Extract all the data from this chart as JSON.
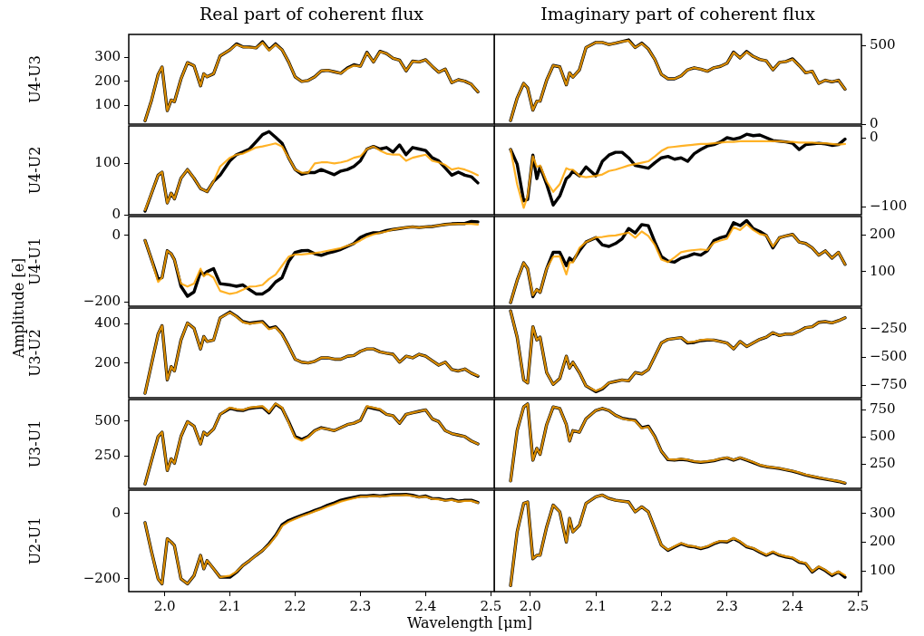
{
  "chart_data": [
    {
      "type": "line",
      "title": "Real part of coherent flux",
      "ylabel": "U4-U3",
      "annotations": [
        "Amplitude [e]"
      ],
      "x": [
        1.97,
        1.98,
        1.99,
        1.996,
        2.004,
        2.01,
        2.015,
        2.025,
        2.035,
        2.045,
        2.055,
        2.06,
        2.065,
        2.075,
        2.085,
        2.1,
        2.11,
        2.12,
        2.13,
        2.14,
        2.15,
        2.16,
        2.17,
        2.18,
        2.19,
        2.2,
        2.21,
        2.22,
        2.23,
        2.24,
        2.25,
        2.26,
        2.27,
        2.28,
        2.29,
        2.3,
        2.31,
        2.32,
        2.33,
        2.34,
        2.35,
        2.36,
        2.37,
        2.38,
        2.39,
        2.4,
        2.41,
        2.42,
        2.43,
        2.44,
        2.45,
        2.46,
        2.47,
        2.48
      ],
      "xlim": [
        1.945,
        2.505
      ],
      "ylim": [
        22,
        394
      ],
      "yticks": [
        100,
        200,
        300
      ],
      "tick_labels": "y",
      "series": [
        {
          "color": "#000000",
          "values": [
            36,
            122,
            228,
            259,
            78,
            122,
            115,
            209,
            277,
            264,
            181,
            231,
            218,
            231,
            305,
            330,
            355,
            342,
            342,
            338,
            364,
            330,
            355,
            330,
            280,
            218,
            199,
            203,
            218,
            243,
            245,
            239,
            233,
            255,
            268,
            262,
            320,
            280,
            324,
            315,
            295,
            287,
            243,
            283,
            280,
            289,
            262,
            237,
            250,
            194,
            206,
            200,
            187,
            156
          ]
        },
        {
          "color": "#ffa500",
          "values": [
            36,
            122,
            228,
            259,
            78,
            122,
            115,
            209,
            277,
            264,
            181,
            231,
            218,
            231,
            305,
            330,
            352,
            342,
            340,
            338,
            360,
            328,
            352,
            330,
            280,
            218,
            199,
            203,
            218,
            243,
            245,
            239,
            233,
            252,
            265,
            262,
            318,
            280,
            322,
            315,
            295,
            287,
            243,
            283,
            280,
            289,
            262,
            237,
            250,
            194,
            206,
            200,
            187,
            156
          ]
        }
      ]
    },
    {
      "type": "line",
      "title": "Imaginary part of coherent flux",
      "x": [
        1.97,
        1.98,
        1.99,
        1.996,
        2.004,
        2.01,
        2.015,
        2.025,
        2.035,
        2.045,
        2.055,
        2.06,
        2.065,
        2.075,
        2.085,
        2.1,
        2.11,
        2.12,
        2.13,
        2.14,
        2.15,
        2.16,
        2.17,
        2.18,
        2.19,
        2.2,
        2.21,
        2.22,
        2.23,
        2.24,
        2.25,
        2.26,
        2.27,
        2.28,
        2.29,
        2.3,
        2.31,
        2.32,
        2.33,
        2.34,
        2.35,
        2.36,
        2.37,
        2.38,
        2.39,
        2.4,
        2.41,
        2.42,
        2.43,
        2.44,
        2.45,
        2.46,
        2.47,
        2.48
      ],
      "xlim": [
        1.945,
        2.505
      ],
      "y2lim": [
        0,
        570
      ],
      "y2ticks": [
        0,
        500
      ],
      "tick_labels": "y",
      "series": [
        {
          "color": "#000000",
          "axis": "y2",
          "values": [
            23,
            165,
            259,
            231,
            89,
            146,
            146,
            279,
            373,
            364,
            250,
            326,
            298,
            345,
            487,
            519,
            519,
            506,
            515,
            525,
            535,
            487,
            515,
            478,
            411,
            316,
            288,
            288,
            307,
            345,
            358,
            349,
            336,
            358,
            367,
            387,
            458,
            421,
            462,
            430,
            411,
            402,
            345,
            392,
            398,
            415,
            373,
            326,
            336,
            259,
            279,
            269,
            279,
            222
          ]
        },
        {
          "color": "#ffa500",
          "axis": "y2",
          "values": [
            23,
            165,
            259,
            231,
            89,
            146,
            146,
            279,
            373,
            364,
            250,
            326,
            298,
            345,
            487,
            519,
            519,
            506,
            515,
            525,
            530,
            487,
            512,
            478,
            411,
            316,
            288,
            288,
            307,
            345,
            358,
            349,
            336,
            358,
            367,
            387,
            455,
            421,
            458,
            430,
            411,
            402,
            345,
            392,
            398,
            412,
            373,
            326,
            336,
            259,
            279,
            269,
            279,
            222
          ]
        }
      ]
    },
    {
      "type": "line",
      "ylabel": "U4-U2",
      "x": [
        1.97,
        1.98,
        1.99,
        1.996,
        2.004,
        2.01,
        2.015,
        2.025,
        2.035,
        2.045,
        2.055,
        2.06,
        2.065,
        2.075,
        2.085,
        2.1,
        2.11,
        2.12,
        2.13,
        2.14,
        2.15,
        2.16,
        2.17,
        2.18,
        2.19,
        2.2,
        2.21,
        2.22,
        2.23,
        2.24,
        2.25,
        2.26,
        2.27,
        2.28,
        2.29,
        2.3,
        2.31,
        2.32,
        2.33,
        2.34,
        2.35,
        2.36,
        2.37,
        2.38,
        2.39,
        2.4,
        2.41,
        2.42,
        2.43,
        2.44,
        2.45,
        2.46,
        2.47,
        2.48
      ],
      "xlim": [
        1.945,
        2.505
      ],
      "ylim": [
        0,
        173
      ],
      "yticks": [
        0,
        100
      ],
      "tick_labels": "y",
      "series": [
        {
          "color": "#000000",
          "values": [
            7,
            42,
            77,
            83,
            23,
            42,
            31,
            71,
            88,
            71,
            51,
            48,
            45,
            65,
            77,
            105,
            117,
            122,
            128,
            142,
            156,
            162,
            151,
            139,
            111,
            88,
            79,
            82,
            82,
            88,
            83,
            78,
            85,
            88,
            94,
            105,
            128,
            133,
            128,
            131,
            122,
            136,
            117,
            131,
            128,
            125,
            111,
            105,
            91,
            77,
            83,
            77,
            74,
            62
          ]
        },
        {
          "color": "#ffa500",
          "values": [
            9,
            42,
            77,
            83,
            23,
            42,
            31,
            71,
            88,
            71,
            51,
            48,
            45,
            65,
            94,
            111,
            117,
            119,
            125,
            131,
            133,
            136,
            139,
            133,
            111,
            88,
            82,
            82,
            100,
            102,
            102,
            100,
            102,
            105,
            111,
            114,
            128,
            133,
            125,
            119,
            117,
            117,
            105,
            111,
            114,
            117,
            105,
            102,
            97,
            88,
            91,
            88,
            83,
            77
          ]
        }
      ]
    },
    {
      "type": "line",
      "x": [
        1.97,
        1.98,
        1.99,
        1.996,
        2.004,
        2.01,
        2.015,
        2.025,
        2.035,
        2.045,
        2.055,
        2.06,
        2.065,
        2.075,
        2.085,
        2.1,
        2.11,
        2.12,
        2.13,
        2.14,
        2.15,
        2.16,
        2.17,
        2.18,
        2.19,
        2.2,
        2.21,
        2.22,
        2.23,
        2.24,
        2.25,
        2.26,
        2.27,
        2.28,
        2.29,
        2.3,
        2.31,
        2.32,
        2.33,
        2.34,
        2.35,
        2.36,
        2.37,
        2.38,
        2.39,
        2.4,
        2.41,
        2.42,
        2.43,
        2.44,
        2.45,
        2.46,
        2.47,
        2.48
      ],
      "xlim": [
        1.945,
        2.505
      ],
      "y2lim": [
        -111,
        17
      ],
      "y2ticks": [
        {
          "value": -100,
          "label": "−100"
        },
        0
      ],
      "tick_labels": "y",
      "series": [
        {
          "color": "#000000",
          "axis": "y2",
          "values": [
            -17,
            -38,
            -91,
            -89,
            -25,
            -59,
            -42,
            -67,
            -97,
            -84,
            -59,
            -55,
            -48,
            -55,
            -42,
            -55,
            -34,
            -25,
            -21,
            -21,
            -29,
            -40,
            -42,
            -44,
            -36,
            -29,
            -27,
            -31,
            -29,
            -34,
            -23,
            -17,
            -12,
            -10,
            -6,
            0,
            -2,
            0,
            5,
            3,
            4,
            0,
            -4,
            -5,
            -6,
            -8,
            -17,
            -10,
            -9,
            -8,
            -9,
            -11,
            -10,
            -2
          ]
        },
        {
          "color": "#ffa500",
          "axis": "y2",
          "values": [
            -17,
            -67,
            -101,
            -84,
            -27,
            -42,
            -40,
            -63,
            -78,
            -67,
            -44,
            -46,
            -46,
            -55,
            -57,
            -55,
            -53,
            -48,
            -46,
            -43,
            -40,
            -38,
            -36,
            -34,
            -27,
            -19,
            -14,
            -13,
            -12,
            -11,
            -10,
            -9,
            -9,
            -8,
            -7,
            -6,
            -6,
            -5,
            -5,
            -5,
            -5,
            -5,
            -5,
            -5,
            -6,
            -6,
            -7,
            -7,
            -7,
            -8,
            -8,
            -9,
            -10,
            -9
          ]
        }
      ]
    },
    {
      "type": "line",
      "ylabel": "U4-U1",
      "x": [
        1.97,
        1.98,
        1.99,
        1.996,
        2.004,
        2.01,
        2.015,
        2.025,
        2.035,
        2.045,
        2.055,
        2.06,
        2.065,
        2.075,
        2.085,
        2.1,
        2.11,
        2.12,
        2.13,
        2.14,
        2.15,
        2.16,
        2.17,
        2.18,
        2.19,
        2.2,
        2.21,
        2.22,
        2.23,
        2.24,
        2.25,
        2.26,
        2.27,
        2.28,
        2.29,
        2.3,
        2.31,
        2.32,
        2.33,
        2.34,
        2.35,
        2.36,
        2.37,
        2.38,
        2.39,
        2.4,
        2.41,
        2.42,
        2.43,
        2.44,
        2.45,
        2.46,
        2.47,
        2.48
      ],
      "xlim": [
        1.945,
        2.505
      ],
      "ylim": [
        -213,
        57
      ],
      "yticks": [
        {
          "value": -200,
          "label": "−200"
        },
        0
      ],
      "tick_labels": "y",
      "series": [
        {
          "color": "#000000",
          "values": [
            -15,
            -73,
            -131,
            -127,
            -46,
            -55,
            -73,
            -153,
            -183,
            -170,
            -109,
            -118,
            -109,
            -100,
            -145,
            -149,
            -153,
            -149,
            -163,
            -176,
            -176,
            -163,
            -140,
            -127,
            -78,
            -51,
            -46,
            -45,
            -55,
            -60,
            -53,
            -48,
            -42,
            -33,
            -24,
            -6,
            3,
            8,
            9,
            15,
            18,
            21,
            24,
            26,
            24,
            26,
            27,
            30,
            33,
            35,
            36,
            36,
            42,
            41
          ]
        },
        {
          "color": "#ffa500",
          "values": [
            -15,
            -73,
            -140,
            -127,
            -46,
            -55,
            -73,
            -145,
            -154,
            -145,
            -100,
            -123,
            -114,
            -127,
            -167,
            -176,
            -172,
            -163,
            -154,
            -153,
            -149,
            -131,
            -118,
            -91,
            -64,
            -57,
            -57,
            -55,
            -53,
            -50,
            -46,
            -42,
            -38,
            -31,
            -25,
            -15,
            -4,
            3,
            8,
            12,
            18,
            21,
            24,
            26,
            24,
            26,
            27,
            30,
            33,
            34,
            35,
            35,
            35,
            33
          ]
        }
      ]
    },
    {
      "type": "line",
      "x": [
        1.97,
        1.98,
        1.99,
        1.996,
        2.004,
        2.01,
        2.015,
        2.025,
        2.035,
        2.045,
        2.055,
        2.06,
        2.065,
        2.075,
        2.085,
        2.1,
        2.11,
        2.12,
        2.13,
        2.14,
        2.15,
        2.16,
        2.17,
        2.18,
        2.19,
        2.2,
        2.21,
        2.22,
        2.23,
        2.24,
        2.25,
        2.26,
        2.27,
        2.28,
        2.29,
        2.3,
        2.31,
        2.32,
        2.33,
        2.34,
        2.35,
        2.36,
        2.37,
        2.38,
        2.39,
        2.4,
        2.41,
        2.42,
        2.43,
        2.44,
        2.45,
        2.46,
        2.47,
        2.48
      ],
      "xlim": [
        1.945,
        2.505
      ],
      "y2lim": [
        5,
        251
      ],
      "y2ticks": [
        100,
        200
      ],
      "tick_labels": "y",
      "series": [
        {
          "color": "#000000",
          "axis": "y2",
          "values": [
            15,
            76,
            124,
            108,
            31,
            51,
            43,
            108,
            153,
            153,
            116,
            137,
            129,
            157,
            181,
            193,
            173,
            169,
            177,
            190,
            218,
            206,
            229,
            226,
            181,
            141,
            129,
            126,
            137,
            142,
            149,
            145,
            157,
            185,
            193,
            198,
            234,
            226,
            240,
            218,
            210,
            199,
            165,
            193,
            198,
            202,
            181,
            177,
            165,
            145,
            157,
            137,
            153,
            120
          ]
        },
        {
          "color": "#ffa500",
          "axis": "y2",
          "values": [
            15,
            76,
            124,
            108,
            35,
            51,
            43,
            108,
            141,
            142,
            92,
            125,
            125,
            165,
            181,
            194,
            195,
            198,
            199,
            203,
            207,
            193,
            210,
            198,
            173,
            133,
            126,
            139,
            153,
            157,
            159,
            161,
            159,
            179,
            185,
            190,
            222,
            214,
            230,
            214,
            203,
            199,
            169,
            193,
            198,
            202,
            181,
            177,
            165,
            145,
            157,
            137,
            153,
            120
          ]
        }
      ]
    },
    {
      "type": "line",
      "ylabel": "U3-U2",
      "x": [
        1.97,
        1.98,
        1.99,
        1.996,
        2.004,
        2.01,
        2.015,
        2.025,
        2.035,
        2.045,
        2.055,
        2.06,
        2.065,
        2.075,
        2.085,
        2.1,
        2.11,
        2.12,
        2.13,
        2.14,
        2.15,
        2.16,
        2.17,
        2.18,
        2.19,
        2.2,
        2.21,
        2.22,
        2.23,
        2.24,
        2.25,
        2.26,
        2.27,
        2.28,
        2.29,
        2.3,
        2.31,
        2.32,
        2.33,
        2.34,
        2.35,
        2.36,
        2.37,
        2.38,
        2.39,
        2.4,
        2.41,
        2.42,
        2.43,
        2.44,
        2.45,
        2.46,
        2.47,
        2.48
      ],
      "xlim": [
        1.945,
        2.505
      ],
      "ylim": [
        24,
        480
      ],
      "yticks": [
        200,
        400
      ],
      "tick_labels": "y",
      "series": [
        {
          "color": "#000000",
          "values": [
            47,
            197,
            348,
            390,
            115,
            182,
            160,
            317,
            404,
            377,
            272,
            335,
            310,
            317,
            430,
            460,
            438,
            411,
            403,
            408,
            411,
            377,
            385,
            348,
            287,
            220,
            205,
            201,
            209,
            227,
            227,
            220,
            220,
            235,
            239,
            260,
            272,
            272,
            257,
            250,
            245,
            205,
            235,
            227,
            245,
            235,
            212,
            190,
            205,
            167,
            160,
            170,
            149,
            133
          ]
        },
        {
          "color": "#ffa500",
          "values": [
            47,
            197,
            348,
            390,
            115,
            182,
            160,
            317,
            404,
            377,
            272,
            335,
            310,
            317,
            430,
            457,
            436,
            408,
            400,
            405,
            408,
            372,
            382,
            345,
            287,
            220,
            205,
            201,
            209,
            227,
            227,
            220,
            220,
            235,
            239,
            260,
            272,
            272,
            257,
            250,
            245,
            205,
            235,
            227,
            245,
            235,
            212,
            190,
            205,
            167,
            160,
            170,
            149,
            136
          ]
        }
      ]
    },
    {
      "type": "line",
      "x": [
        1.97,
        1.98,
        1.99,
        1.996,
        2.004,
        2.01,
        2.015,
        2.025,
        2.035,
        2.045,
        2.055,
        2.06,
        2.065,
        2.075,
        2.085,
        2.1,
        2.11,
        2.12,
        2.13,
        2.14,
        2.15,
        2.16,
        2.17,
        2.18,
        2.19,
        2.2,
        2.21,
        2.22,
        2.23,
        2.24,
        2.25,
        2.26,
        2.27,
        2.28,
        2.29,
        2.3,
        2.31,
        2.32,
        2.33,
        2.34,
        2.35,
        2.36,
        2.37,
        2.38,
        2.39,
        2.4,
        2.41,
        2.42,
        2.43,
        2.44,
        2.45,
        2.46,
        2.47,
        2.48
      ],
      "xlim": [
        1.945,
        2.505
      ],
      "y2lim": [
        -860,
        -67
      ],
      "y2ticks": [
        {
          "value": -750,
          "label": "−750"
        },
        {
          "value": -500,
          "label": "−500"
        },
        {
          "value": -250,
          "label": "−250"
        }
      ],
      "tick_labels": "y",
      "series": [
        {
          "color": "#000000",
          "axis": "y2",
          "values": [
            -93,
            -324,
            -703,
            -729,
            -232,
            -350,
            -324,
            -638,
            -742,
            -690,
            -493,
            -598,
            -546,
            -638,
            -755,
            -807,
            -781,
            -729,
            -716,
            -703,
            -711,
            -638,
            -650,
            -611,
            -493,
            -376,
            -344,
            -336,
            -328,
            -376,
            -371,
            -355,
            -350,
            -350,
            -363,
            -376,
            -428,
            -363,
            -407,
            -376,
            -344,
            -324,
            -285,
            -310,
            -297,
            -297,
            -271,
            -240,
            -232,
            -193,
            -187,
            -198,
            -179,
            -153
          ]
        },
        {
          "color": "#ffa500",
          "axis": "y2",
          "values": [
            -93,
            -324,
            -703,
            -729,
            -232,
            -350,
            -324,
            -638,
            -742,
            -690,
            -493,
            -598,
            -546,
            -638,
            -755,
            -800,
            -775,
            -729,
            -716,
            -703,
            -711,
            -638,
            -650,
            -611,
            -493,
            -376,
            -344,
            -336,
            -328,
            -370,
            -365,
            -350,
            -345,
            -350,
            -363,
            -376,
            -428,
            -363,
            -407,
            -376,
            -344,
            -324,
            -285,
            -310,
            -297,
            -297,
            -271,
            -240,
            -232,
            -193,
            -187,
            -198,
            -179,
            -153
          ]
        }
      ]
    },
    {
      "type": "line",
      "ylabel": "U3-U1",
      "x": [
        1.97,
        1.98,
        1.99,
        1.996,
        2.004,
        2.01,
        2.015,
        2.025,
        2.035,
        2.045,
        2.055,
        2.06,
        2.065,
        2.075,
        2.085,
        2.1,
        2.11,
        2.12,
        2.13,
        2.14,
        2.15,
        2.16,
        2.17,
        2.18,
        2.19,
        2.2,
        2.21,
        2.22,
        2.23,
        2.24,
        2.25,
        2.26,
        2.27,
        2.28,
        2.29,
        2.3,
        2.31,
        2.32,
        2.33,
        2.34,
        2.35,
        2.36,
        2.37,
        2.38,
        2.39,
        2.4,
        2.41,
        2.42,
        2.43,
        2.44,
        2.45,
        2.46,
        2.47,
        2.48
      ],
      "xlim": [
        1.945,
        2.505
      ],
      "ylim": [
        20,
        654
      ],
      "yticks": [
        250,
        500
      ],
      "tick_labels": "y",
      "series": [
        {
          "color": "#000000",
          "values": [
            51,
            221,
            390,
            421,
            147,
            231,
            199,
            390,
            496,
            464,
            337,
            421,
            400,
            443,
            548,
            591,
            580,
            576,
            591,
            597,
            601,
            559,
            622,
            591,
            496,
            390,
            369,
            390,
            432,
            453,
            443,
            432,
            453,
            475,
            485,
            506,
            601,
            591,
            580,
            548,
            538,
            485,
            548,
            559,
            570,
            580,
            516,
            496,
            432,
            411,
            400,
            390,
            358,
            337
          ]
        },
        {
          "color": "#ffa500",
          "values": [
            51,
            221,
            390,
            421,
            147,
            231,
            199,
            390,
            496,
            464,
            337,
            421,
            400,
            443,
            548,
            596,
            585,
            580,
            596,
            602,
            606,
            565,
            626,
            596,
            490,
            380,
            360,
            385,
            430,
            450,
            443,
            432,
            453,
            475,
            485,
            506,
            606,
            596,
            585,
            548,
            538,
            485,
            548,
            559,
            570,
            580,
            516,
            496,
            432,
            411,
            400,
            390,
            358,
            337
          ]
        }
      ]
    },
    {
      "type": "line",
      "x": [
        1.97,
        1.98,
        1.99,
        1.996,
        2.004,
        2.01,
        2.015,
        2.025,
        2.035,
        2.045,
        2.055,
        2.06,
        2.065,
        2.075,
        2.085,
        2.1,
        2.11,
        2.12,
        2.13,
        2.14,
        2.15,
        2.16,
        2.17,
        2.18,
        2.19,
        2.2,
        2.21,
        2.22,
        2.23,
        2.24,
        2.25,
        2.26,
        2.27,
        2.28,
        2.29,
        2.3,
        2.31,
        2.32,
        2.33,
        2.34,
        2.35,
        2.36,
        2.37,
        2.38,
        2.39,
        2.4,
        2.41,
        2.42,
        2.43,
        2.44,
        2.45,
        2.46,
        2.47,
        2.48
      ],
      "xlim": [
        1.945,
        2.505
      ],
      "y2lim": [
        26,
        846
      ],
      "y2ticks": [
        250,
        500,
        750
      ],
      "tick_labels": "y",
      "series": [
        {
          "color": "#000000",
          "axis": "y2",
          "values": [
            94,
            559,
            778,
            805,
            286,
            395,
            340,
            614,
            778,
            764,
            614,
            463,
            559,
            545,
            668,
            745,
            764,
            745,
            701,
            674,
            663,
            655,
            586,
            600,
            504,
            368,
            291,
            286,
            294,
            286,
            272,
            266,
            272,
            280,
            297,
            307,
            286,
            307,
            286,
            264,
            239,
            225,
            217,
            209,
            196,
            184,
            168,
            149,
            135,
            122,
            111,
            100,
            89,
            73
          ]
        },
        {
          "color": "#ffa500",
          "axis": "y2",
          "values": [
            94,
            559,
            778,
            805,
            286,
            395,
            340,
            614,
            778,
            764,
            614,
            463,
            559,
            545,
            668,
            745,
            764,
            745,
            701,
            670,
            658,
            650,
            580,
            595,
            500,
            368,
            295,
            290,
            298,
            290,
            276,
            270,
            276,
            284,
            300,
            310,
            290,
            310,
            290,
            268,
            242,
            228,
            220,
            212,
            199,
            187,
            171,
            152,
            138,
            125,
            114,
            103,
            92,
            76
          ]
        }
      ]
    },
    {
      "type": "line",
      "ylabel": "U2-U1",
      "xlabel": "Wavelength [μm]",
      "x": [
        1.97,
        1.98,
        1.99,
        1.996,
        2.004,
        2.01,
        2.015,
        2.025,
        2.035,
        2.045,
        2.055,
        2.06,
        2.065,
        2.075,
        2.085,
        2.1,
        2.11,
        2.12,
        2.13,
        2.14,
        2.15,
        2.16,
        2.17,
        2.18,
        2.19,
        2.2,
        2.21,
        2.22,
        2.23,
        2.24,
        2.25,
        2.26,
        2.27,
        2.28,
        2.29,
        2.3,
        2.31,
        2.32,
        2.33,
        2.34,
        2.35,
        2.36,
        2.37,
        2.38,
        2.39,
        2.4,
        2.41,
        2.42,
        2.43,
        2.44,
        2.45,
        2.46,
        2.47,
        2.48
      ],
      "xlim": [
        1.945,
        2.505
      ],
      "xticks": [
        {
          "value": 2,
          "label": "2.0"
        },
        2.1,
        2.2,
        2.3,
        2.4,
        2.5
      ],
      "ylim": [
        -239,
        72
      ],
      "yticks": [
        {
          "value": -200,
          "label": "−200"
        },
        0
      ],
      "series": [
        {
          "color": "#000000",
          "values": [
            -28,
            -118,
            -200,
            -215,
            -77,
            -87,
            -98,
            -200,
            -215,
            -190,
            -128,
            -169,
            -144,
            -169,
            -195,
            -195,
            -180,
            -159,
            -144,
            -128,
            -113,
            -92,
            -67,
            -34,
            -21,
            -13,
            -5,
            2,
            10,
            17,
            26,
            33,
            41,
            46,
            50,
            54,
            54,
            56,
            54,
            56,
            58,
            58,
            59,
            56,
            51,
            54,
            46,
            46,
            41,
            44,
            38,
            41,
            41,
            34
          ]
        },
        {
          "color": "#ffa500",
          "values": [
            -28,
            -118,
            -200,
            -215,
            -77,
            -87,
            -98,
            -200,
            -215,
            -190,
            -128,
            -169,
            -144,
            -169,
            -195,
            -190,
            -178,
            -159,
            -144,
            -128,
            -113,
            -95,
            -70,
            -38,
            -25,
            -16,
            -8,
            -1,
            7,
            14,
            22,
            29,
            37,
            42,
            47,
            52,
            52,
            54,
            53,
            54,
            56,
            56,
            57,
            54,
            50,
            52,
            45,
            44,
            40,
            42,
            37,
            39,
            39,
            33
          ]
        }
      ]
    },
    {
      "type": "line",
      "x": [
        1.97,
        1.98,
        1.99,
        1.996,
        2.004,
        2.01,
        2.015,
        2.025,
        2.035,
        2.045,
        2.055,
        2.06,
        2.065,
        2.075,
        2.085,
        2.1,
        2.11,
        2.12,
        2.13,
        2.14,
        2.15,
        2.16,
        2.17,
        2.18,
        2.19,
        2.2,
        2.21,
        2.22,
        2.23,
        2.24,
        2.25,
        2.26,
        2.27,
        2.28,
        2.29,
        2.3,
        2.31,
        2.32,
        2.33,
        2.34,
        2.35,
        2.36,
        2.37,
        2.38,
        2.39,
        2.4,
        2.41,
        2.42,
        2.43,
        2.44,
        2.45,
        2.46,
        2.47,
        2.48
      ],
      "xlim": [
        1.945,
        2.505
      ],
      "xticks": [
        {
          "value": 2,
          "label": "2.0"
        },
        2.1,
        2.2,
        2.3,
        2.4,
        2.5
      ],
      "y2lim": [
        29,
        381
      ],
      "y2ticks": [
        100,
        200,
        300
      ],
      "series": [
        {
          "color": "#000000",
          "axis": "y2",
          "values": [
            50,
            236,
            335,
            340,
            143,
            155,
            155,
            253,
            329,
            306,
            201,
            283,
            236,
            259,
            335,
            358,
            364,
            352,
            346,
            343,
            340,
            306,
            323,
            306,
            248,
            190,
            172,
            184,
            195,
            187,
            184,
            178,
            184,
            195,
            203,
            201,
            213,
            201,
            184,
            178,
            166,
            155,
            166,
            155,
            149,
            145,
            131,
            126,
            97,
            114,
            102,
            85,
            97,
            79
          ]
        },
        {
          "color": "#ffa500",
          "axis": "y2",
          "values": [
            50,
            236,
            335,
            340,
            143,
            155,
            155,
            253,
            329,
            306,
            201,
            283,
            236,
            259,
            335,
            358,
            364,
            352,
            346,
            343,
            340,
            306,
            323,
            306,
            248,
            190,
            174,
            186,
            197,
            189,
            186,
            180,
            186,
            197,
            205,
            203,
            215,
            203,
            186,
            180,
            168,
            157,
            168,
            157,
            151,
            147,
            133,
            128,
            99,
            116,
            104,
            88,
            99,
            86
          ]
        }
      ]
    }
  ]
}
